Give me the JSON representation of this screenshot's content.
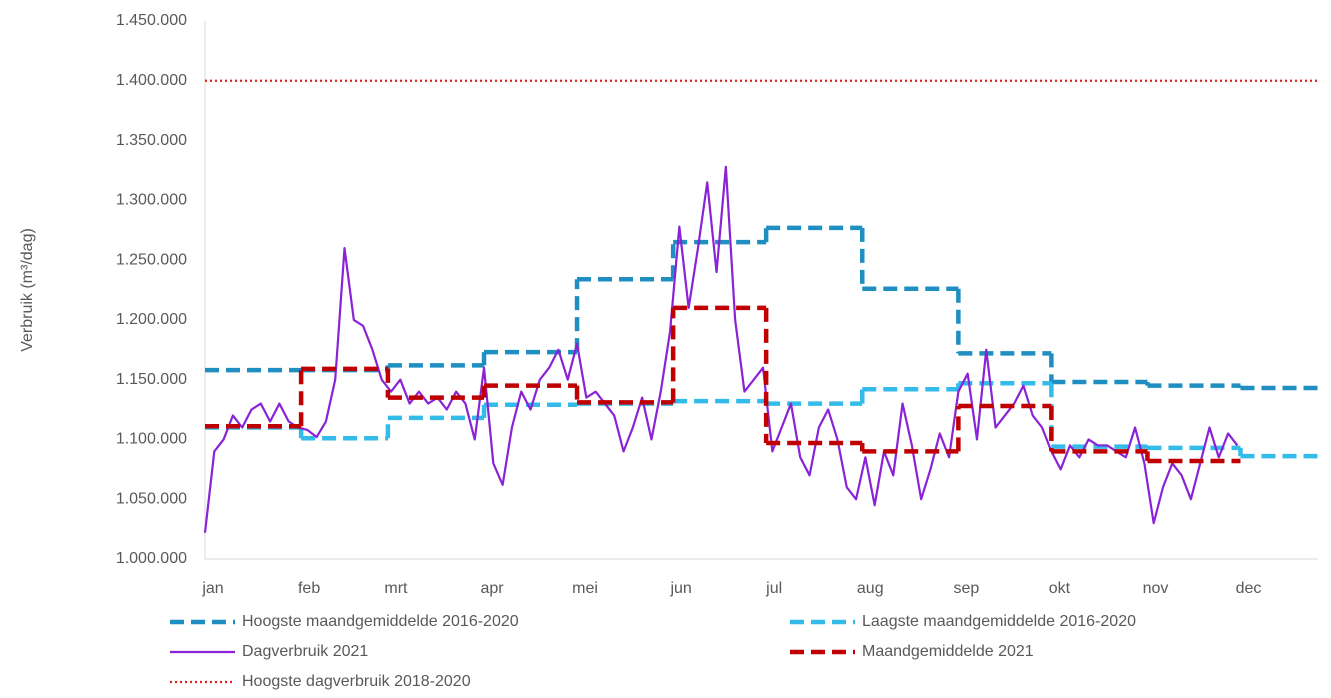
{
  "chart_data": {
    "type": "line",
    "y_label": "Verbruik (m³/dag)",
    "xlim": [
      1,
      360
    ],
    "xticks": [
      {
        "value": 1,
        "label": "jan"
      },
      {
        "value": 32,
        "label": "feb"
      },
      {
        "value": 60,
        "label": "mrt"
      },
      {
        "value": 91,
        "label": "apr"
      },
      {
        "value": 121,
        "label": "mei"
      },
      {
        "value": 152,
        "label": "jun"
      },
      {
        "value": 182,
        "label": "jul"
      },
      {
        "value": 213,
        "label": "aug"
      },
      {
        "value": 244,
        "label": "sep"
      },
      {
        "value": 274,
        "label": "okt"
      },
      {
        "value": 305,
        "label": "nov"
      },
      {
        "value": 335,
        "label": "dec"
      }
    ],
    "ylim": [
      1000000,
      1450000
    ],
    "yticks": [
      {
        "value": 1000000,
        "label": "1.000.000"
      },
      {
        "value": 1050000,
        "label": "1.050.000"
      },
      {
        "value": 1100000,
        "label": "1.100.000"
      },
      {
        "value": 1150000,
        "label": "1.150.000"
      },
      {
        "value": 1200000,
        "label": "1.200.000"
      },
      {
        "value": 1250000,
        "label": "1.250.000"
      },
      {
        "value": 1300000,
        "label": "1.300.000"
      },
      {
        "value": 1350000,
        "label": "1.350.000"
      },
      {
        "value": 1400000,
        "label": "1.400.000"
      },
      {
        "value": 1450000,
        "label": "1.450.000"
      }
    ],
    "grid": false,
    "series": [
      {
        "name": "Hoogste maandgemiddelde 2016-2020",
        "color": "#1f8ec0",
        "style": "dashed",
        "values": [
          1158000,
          1158000,
          1162000,
          1173000,
          1234000,
          1265000,
          1277000,
          1226000,
          1172000,
          1148000,
          1145000,
          1143000
        ]
      },
      {
        "name": "Laagste maandgemiddelde 2016-2020",
        "color": "#33bbe9",
        "style": "dashed",
        "values": [
          1110000,
          1101000,
          1118000,
          1129000,
          1130000,
          1132000,
          1130000,
          1142000,
          1147000,
          1094000,
          1093000,
          1086000
        ]
      },
      {
        "name": "Dagverbruik 2021",
        "color": "#8a22d6",
        "style": "solid",
        "x": [
          1,
          4,
          7,
          10,
          13,
          16,
          19,
          22,
          25,
          28,
          31,
          34,
          37,
          40,
          43,
          46,
          49,
          52,
          55,
          58,
          61,
          64,
          67,
          70,
          73,
          76,
          79,
          82,
          85,
          88,
          91,
          94,
          97,
          100,
          103,
          106,
          109,
          112,
          115,
          118,
          121,
          124,
          127,
          130,
          133,
          136,
          139,
          142,
          145,
          148,
          151,
          154,
          157,
          160,
          163,
          166,
          169,
          172,
          175,
          178,
          181,
          184,
          187,
          190,
          193,
          196,
          199,
          202,
          205,
          208,
          211,
          214,
          217,
          220,
          223,
          226,
          229,
          232,
          235,
          238,
          241,
          244,
          247,
          250,
          253,
          256,
          259,
          262,
          265,
          268,
          271,
          274,
          277,
          280,
          283,
          286,
          289,
          292,
          295,
          298,
          301,
          304,
          307,
          310,
          313,
          316,
          319,
          322,
          325,
          328,
          331,
          334
        ],
        "values": [
          1022000,
          1090000,
          1100000,
          1120000,
          1110000,
          1125000,
          1130000,
          1115000,
          1130000,
          1115000,
          1110000,
          1108000,
          1102000,
          1115000,
          1150000,
          1260000,
          1200000,
          1195000,
          1175000,
          1150000,
          1140000,
          1150000,
          1130000,
          1140000,
          1130000,
          1135000,
          1125000,
          1140000,
          1130000,
          1100000,
          1160000,
          1080000,
          1062000,
          1110000,
          1140000,
          1125000,
          1150000,
          1160000,
          1175000,
          1150000,
          1180000,
          1135000,
          1140000,
          1130000,
          1120000,
          1090000,
          1110000,
          1135000,
          1100000,
          1140000,
          1190000,
          1278000,
          1210000,
          1260000,
          1315000,
          1240000,
          1328000,
          1200000,
          1140000,
          1150000,
          1160000,
          1090000,
          1110000,
          1130000,
          1085000,
          1070000,
          1110000,
          1125000,
          1100000,
          1060000,
          1050000,
          1085000,
          1045000,
          1090000,
          1070000,
          1130000,
          1095000,
          1050000,
          1075000,
          1105000,
          1085000,
          1140000,
          1155000,
          1100000,
          1175000,
          1110000,
          1120000,
          1130000,
          1145000,
          1120000,
          1110000,
          1090000,
          1075000,
          1095000,
          1085000,
          1100000,
          1095000,
          1095000,
          1090000,
          1085000,
          1110000,
          1080000,
          1030000,
          1060000,
          1080000,
          1070000,
          1050000,
          1080000,
          1110000,
          1085000,
          1105000,
          1095000
        ]
      },
      {
        "name": "Maandgemiddelde 2021",
        "color": "#c00000",
        "style": "dashed",
        "values": [
          1111000,
          1159000,
          1135000,
          1145000,
          1131000,
          1210000,
          1097000,
          1090000,
          1128000,
          1090000,
          1082000
        ]
      },
      {
        "name": "Hoogste dagverbruik 2018-2020",
        "color": "#e02020",
        "style": "dotted",
        "values": [
          1400000
        ]
      }
    ]
  }
}
